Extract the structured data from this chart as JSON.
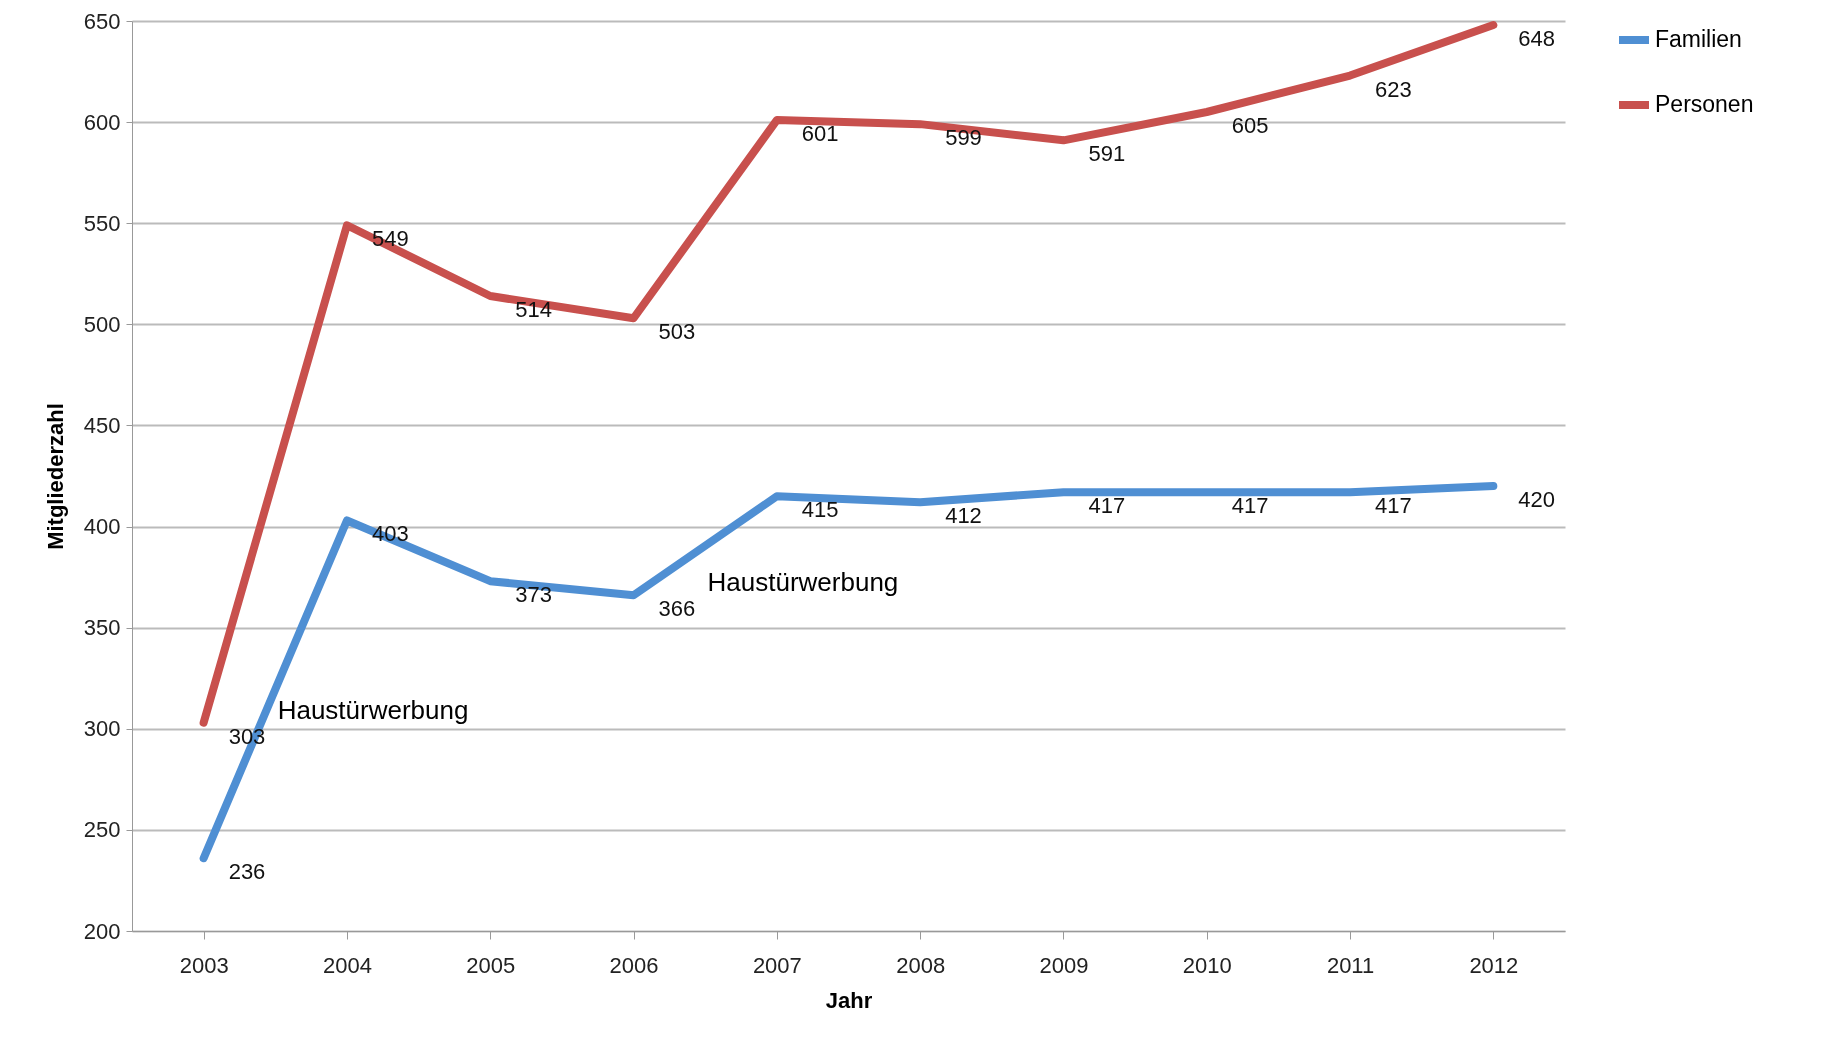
{
  "chart_data": {
    "type": "line",
    "xlabel": "Jahr",
    "ylabel": "Mitgliederzahl",
    "categories": [
      "2003",
      "2004",
      "2005",
      "2006",
      "2007",
      "2008",
      "2009",
      "2010",
      "2011",
      "2012"
    ],
    "series": [
      {
        "name": "Familien",
        "color": "#4f8fd3",
        "values": [
          236,
          403,
          373,
          366,
          415,
          412,
          417,
          417,
          417,
          420
        ]
      },
      {
        "name": "Personen",
        "color": "#c8504d",
        "values": [
          303,
          549,
          514,
          503,
          601,
          599,
          591,
          605,
          623,
          648
        ]
      }
    ],
    "ylim": [
      200,
      650
    ],
    "yticks": [
      200,
      250,
      300,
      350,
      400,
      450,
      500,
      550,
      600,
      650
    ],
    "grid": "y",
    "legend": "right",
    "data_labels": true,
    "marker": "none",
    "line_style": "solid",
    "annotations": [
      {
        "text": "Haustürwerbung",
        "x": "2003",
        "y": 303
      },
      {
        "text": "Haustürwerbung",
        "x": "2006",
        "y": 366
      }
    ]
  }
}
